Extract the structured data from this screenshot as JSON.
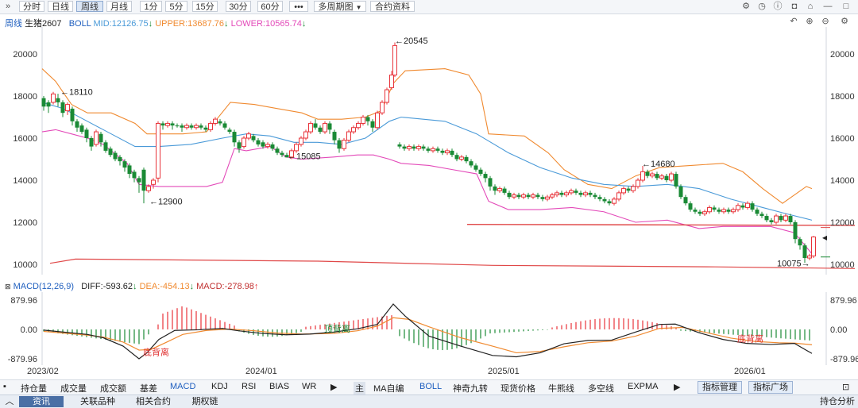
{
  "toolbar": {
    "periods": [
      "分时",
      "日线",
      "周线",
      "月线",
      "1分",
      "5分",
      "15分",
      "30分",
      "60分"
    ],
    "active_period": "周线",
    "more": "•••",
    "multi_period": "多周期图",
    "contract_info": "合约资料",
    "icons": [
      "collapse-icon",
      "settings-icon",
      "clock-icon",
      "info-icon",
      "camera-icon",
      "home-icon",
      "screen-icon",
      "minimize-icon",
      "maximize-icon",
      "close-icon"
    ]
  },
  "main_legend": {
    "period": "周线",
    "symbol": "生猪2607",
    "boll": "BOLL",
    "mid": "MID:12126.75",
    "upper": "UPPER:13687.76",
    "lower": "LOWER:10565.74",
    "arrow": "↓"
  },
  "macd_legend": {
    "title": "MACD(12,26,9)",
    "diff": "DIFF:-593.62",
    "dea": "DEA:-454.13",
    "macd": "MACD:-278.98",
    "down": "↓",
    "up": "↑"
  },
  "price_axis": [
    "20000",
    "18000",
    "16000",
    "14000",
    "12000",
    "10000"
  ],
  "macd_axis": [
    "879.96",
    "0.00",
    "-879.96"
  ],
  "time_axis": [
    "2023/02",
    "2024/01",
    "2025/01",
    "2026/01"
  ],
  "annotations": {
    "high_2023": "18110",
    "low_2023": "12900",
    "low_2024": "15085",
    "high_2024": "20545",
    "high_2025": "14680",
    "low_2026": "10075"
  },
  "macd_notes": [
    "底背离",
    "顶背离",
    "底背离"
  ],
  "colors": {
    "up": "#e8333a",
    "down": "#1a8a35",
    "mid": "#4a9ad8",
    "upper": "#f08a30",
    "lower": "#e34ab9",
    "diff": "#222222",
    "dea": "#f08a30",
    "support": "#e04848"
  },
  "chart_data": {
    "type": "candlestick",
    "symbol": "生猪2607",
    "period": "周线",
    "y_axis": [
      20000,
      18000,
      16000,
      14000,
      12000,
      10000
    ],
    "x_ticks": [
      "2023/02",
      "2024/01",
      "2025/01",
      "2026/01"
    ],
    "highs_lows": {
      "18110": "high",
      "12900": "low",
      "15085": "low",
      "20545": "high",
      "14680": "high",
      "10075": "low"
    },
    "indicators": {
      "BOLL": {
        "MID": 12126.75,
        "UPPER": 13687.76,
        "LOWER": 10565.74
      },
      "MACD": {
        "DIFF": -593.62,
        "DEA": -454.13,
        "MACD": -278.98,
        "range": [
          -879.96,
          879.96
        ]
      }
    }
  },
  "indicator_tabs": [
    "持仓量",
    "成交量",
    "成交额",
    "基差",
    "MACD",
    "KDJ",
    "RSI",
    "BIAS",
    "WR"
  ],
  "indicator_selected": "MACD",
  "main_tabs": [
    "MA自编",
    "BOLL",
    "神奇九转",
    "现货价格",
    "牛熊线",
    "多空线",
    "EXPMA"
  ],
  "main_selected": "BOLL",
  "main_badge": "主",
  "indicator_manage": "指标管理",
  "indicator_square": "指标广场",
  "bottom_tabs": [
    "资讯",
    "关联品种",
    "相关合约",
    "期权链"
  ],
  "bottom_right": "持仓分析"
}
